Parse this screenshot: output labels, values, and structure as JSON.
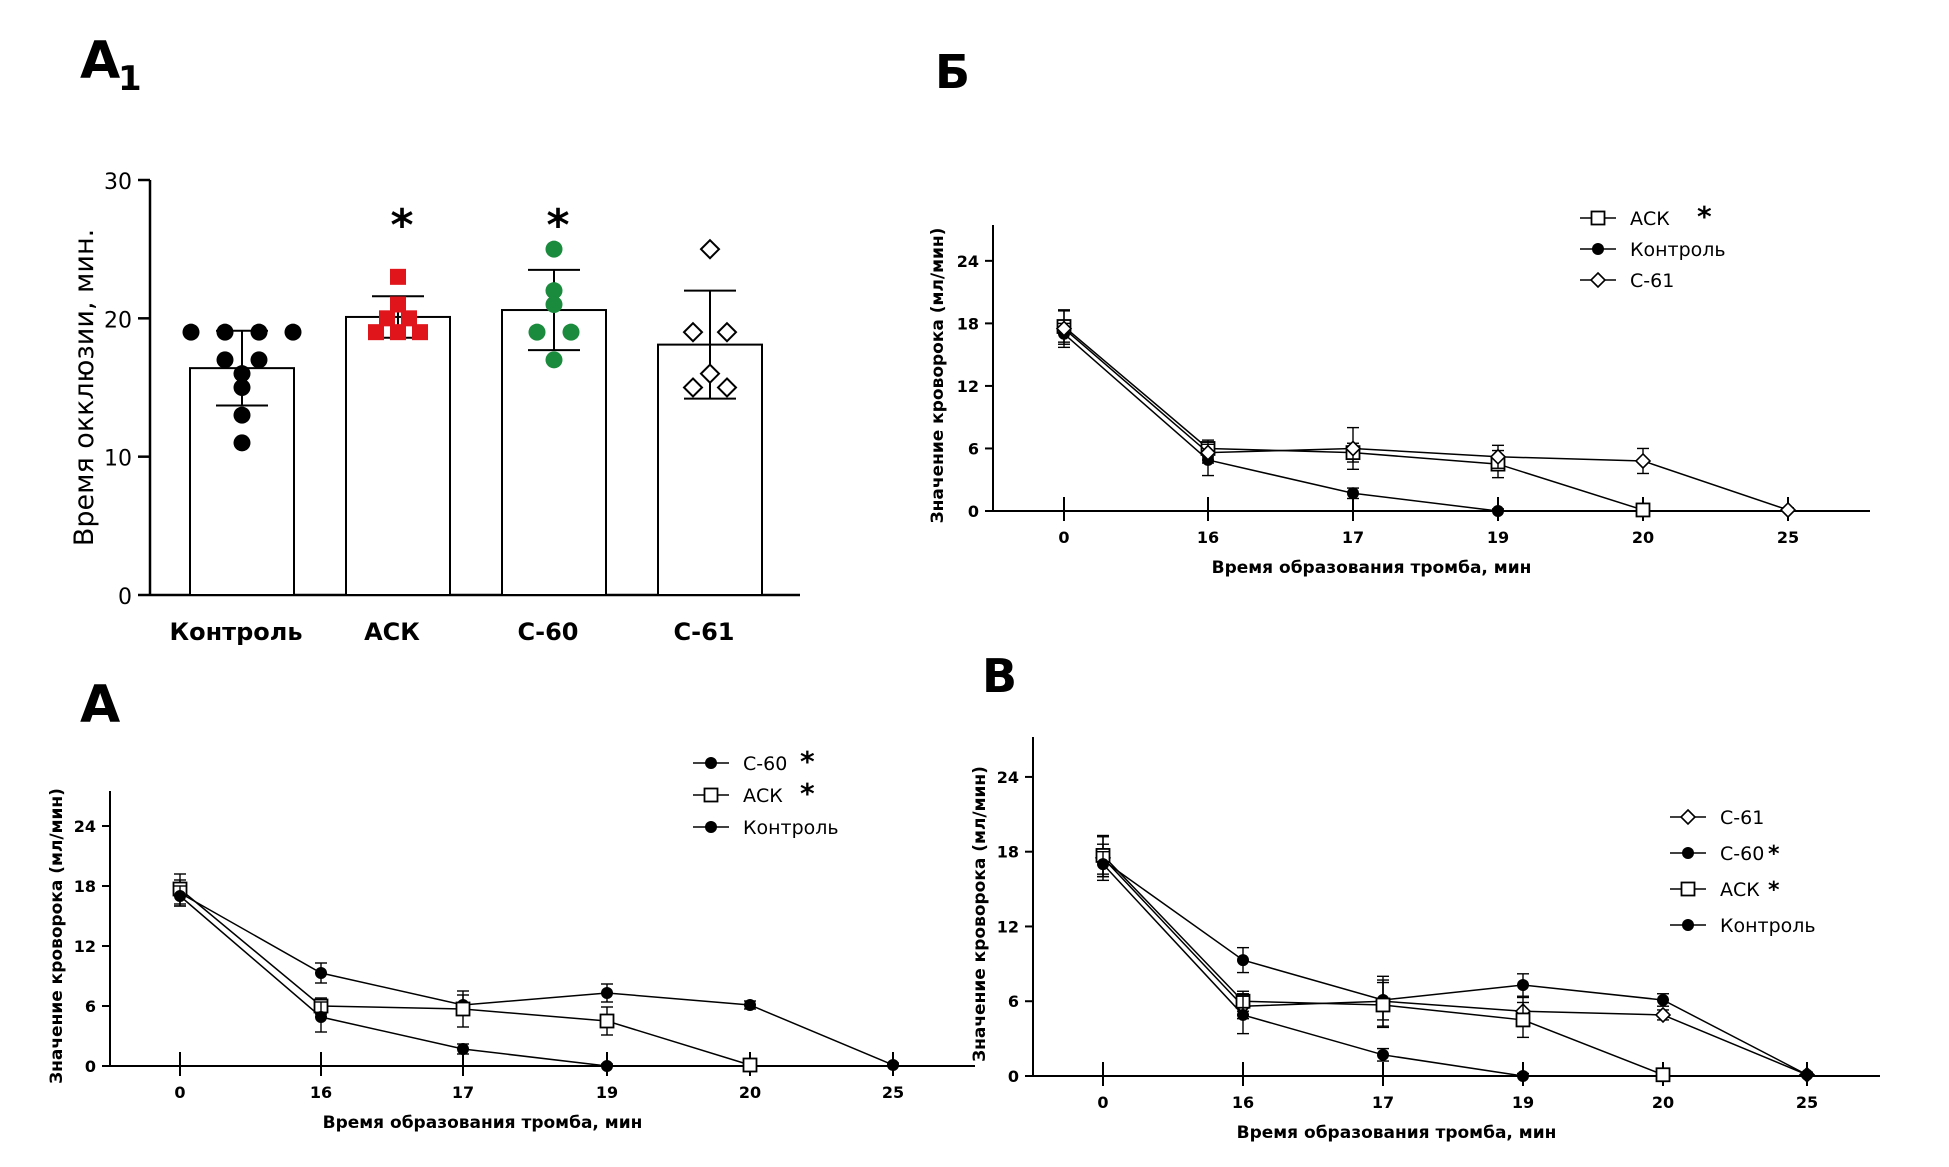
{
  "panel_labels": {
    "a1_main": "А",
    "a1_sub": "1",
    "b": "Б",
    "a": "А",
    "v": "В"
  },
  "chart_data": [
    {
      "id": "A1",
      "type": "bar",
      "ylabel": "Время окклюзии, мин.",
      "xlabel": "",
      "ylim": [
        0,
        30
      ],
      "yticks": [
        0,
        10,
        20,
        30
      ],
      "categories": [
        "Контроль",
        "АСК",
        "С-60",
        "С-61"
      ],
      "values": [
        16.4,
        20.1,
        20.6,
        18.1
      ],
      "sd": [
        2.7,
        1.5,
        2.9,
        3.9
      ],
      "significance": [
        "",
        "*",
        "*",
        ""
      ],
      "points": [
        [
          19,
          19,
          19,
          19,
          17,
          17,
          16,
          15,
          13,
          11
        ],
        [
          23,
          21,
          20,
          20,
          19,
          19,
          19
        ],
        [
          25,
          22,
          21,
          19,
          19,
          17
        ],
        [
          25,
          19,
          19,
          16,
          15,
          15
        ]
      ],
      "point_colors": [
        "#000000",
        "#e0141b",
        "#1a8a3c",
        "#ffffff"
      ],
      "point_shapes": [
        "circle",
        "square",
        "circle",
        "diamond"
      ]
    },
    {
      "id": "B",
      "type": "line",
      "xlabel": "Время образования тромба, мин",
      "ylabel": "Значение кроворока (мл/мин)",
      "x": [
        "0",
        "16",
        "17",
        "19",
        "20",
        "25"
      ],
      "ylim": [
        0,
        26
      ],
      "yticks": [
        0,
        6,
        12,
        18,
        24
      ],
      "legend_position": "top-center",
      "series": [
        {
          "name": "АСК",
          "sig": "*",
          "marker": "open-square",
          "values": [
            17.7,
            6.0,
            5.6,
            4.5,
            0.1,
            null
          ],
          "err": [
            1.5,
            0.8,
            0.9,
            1.3,
            0.3,
            null
          ]
        },
        {
          "name": "Контроль",
          "sig": "",
          "marker": "filled-circle",
          "values": [
            17.0,
            4.9,
            1.7,
            0.0,
            null,
            null
          ],
          "err": [
            1.0,
            1.5,
            0.5,
            0.2,
            null,
            null
          ]
        },
        {
          "name": "С-61",
          "sig": "",
          "marker": "open-diamond",
          "values": [
            17.5,
            5.6,
            6.0,
            5.2,
            4.8,
            0.1
          ],
          "err": [
            1.8,
            1.0,
            2.0,
            1.1,
            1.2,
            0.2
          ]
        }
      ]
    },
    {
      "id": "A",
      "type": "line",
      "xlabel": "Время образования тромба, мин",
      "ylabel": "Значение кроворока (мл/мин)",
      "x": [
        "0",
        "16",
        "17",
        "19",
        "20",
        "25"
      ],
      "ylim": [
        0,
        26
      ],
      "yticks": [
        0,
        6,
        12,
        18,
        24
      ],
      "legend_position": "top-right",
      "series": [
        {
          "name": "С-60",
          "sig": "*",
          "marker": "filled-circle",
          "values": [
            17.3,
            9.3,
            6.1,
            7.3,
            6.1,
            0.1
          ],
          "err": [
            1.3,
            1.0,
            1.0,
            0.9,
            0.4,
            0.2
          ]
        },
        {
          "name": "АСК",
          "sig": "*",
          "marker": "open-square",
          "values": [
            17.7,
            6.0,
            5.7,
            4.5,
            0.1,
            null
          ],
          "err": [
            1.5,
            0.8,
            1.8,
            1.4,
            0.3,
            null
          ]
        },
        {
          "name": "Контроль",
          "sig": "",
          "marker": "filled-circle",
          "values": [
            17.0,
            4.9,
            1.7,
            0.0,
            null,
            null
          ],
          "err": [
            1.0,
            1.5,
            0.5,
            0.2,
            null,
            null
          ]
        }
      ]
    },
    {
      "id": "V",
      "type": "line",
      "xlabel": "Время образования тромба, мин",
      "ylabel": "Значение кроворока (мл/мин)",
      "x": [
        "0",
        "16",
        "17",
        "19",
        "20",
        "25"
      ],
      "ylim": [
        0,
        26
      ],
      "yticks": [
        0,
        6,
        12,
        18,
        24
      ],
      "legend_position": "right",
      "series": [
        {
          "name": "С-61",
          "sig": "",
          "marker": "open-diamond",
          "values": [
            17.5,
            5.6,
            6.0,
            5.2,
            4.9,
            0.1
          ],
          "err": [
            1.8,
            1.0,
            2.0,
            1.1,
            0.4,
            0.2
          ]
        },
        {
          "name": "С-60",
          "sig": "*",
          "marker": "filled-circle",
          "values": [
            17.3,
            9.3,
            6.1,
            7.3,
            6.1,
            0.1
          ],
          "err": [
            1.3,
            1.0,
            1.6,
            0.9,
            0.5,
            0.2
          ]
        },
        {
          "name": "АСК",
          "sig": "*",
          "marker": "open-square",
          "values": [
            17.7,
            6.0,
            5.7,
            4.5,
            0.1,
            null
          ],
          "err": [
            1.5,
            0.8,
            1.8,
            1.4,
            0.3,
            null
          ]
        },
        {
          "name": "Контроль",
          "sig": "",
          "marker": "filled-circle",
          "values": [
            17.0,
            4.9,
            1.7,
            0.0,
            null,
            null
          ],
          "err": [
            1.0,
            1.5,
            0.5,
            0.2,
            null,
            null
          ]
        }
      ]
    }
  ]
}
